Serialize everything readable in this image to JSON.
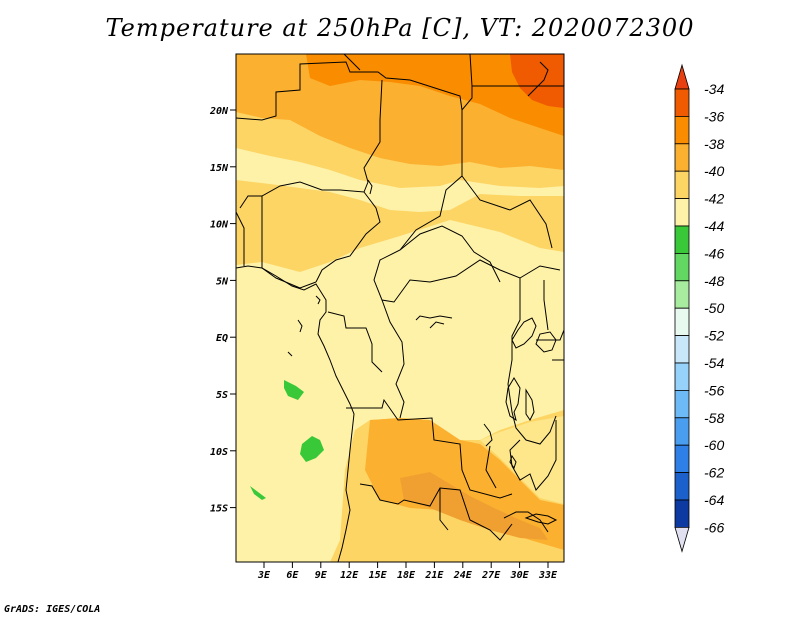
{
  "title": "Temperature at 250hPa [C], VT: 2020072300",
  "credit": "GrADS: IGES/COLA",
  "axes": {
    "lat_ticks": [
      "20N",
      "15N",
      "10N",
      "5N",
      "EQ",
      "5S",
      "10S",
      "15S"
    ],
    "lon_ticks": [
      "3E",
      "6E",
      "9E",
      "12E",
      "15E",
      "18E",
      "21E",
      "24E",
      "27E",
      "30E",
      "33E"
    ]
  },
  "colorbar": {
    "levels": [
      "-34",
      "-36",
      "-38",
      "-40",
      "-42",
      "-44",
      "-46",
      "-48",
      "-50",
      "-52",
      "-54",
      "-56",
      "-58",
      "-60",
      "-62",
      "-64",
      "-66"
    ],
    "colors": [
      "#f05a00",
      "#fa8c00",
      "#fbb030",
      "#fdd565",
      "#fef2a8",
      "#38c838",
      "#62d862",
      "#a8eca0",
      "#e8faf0",
      "#c8e8fa",
      "#96d2fa",
      "#6ebaf6",
      "#4a9ef0",
      "#2e80e6",
      "#1c60cc",
      "#0c3aa0",
      "#081060"
    ],
    "over_color": "#e84010",
    "under_color": "#e0e0f0"
  }
}
